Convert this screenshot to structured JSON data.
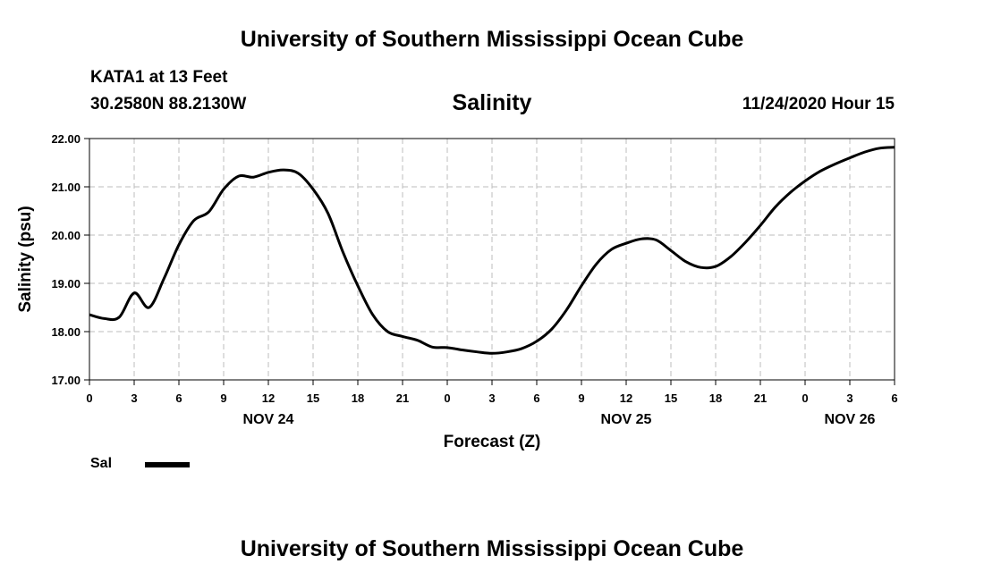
{
  "header": {
    "title": "University of Southern Mississippi Ocean Cube",
    "station": "KATA1 at 13 Feet",
    "coords": "30.2580N 88.2130W",
    "datestamp": "11/24/2020 Hour 15"
  },
  "footer": {
    "title": "University of Southern Mississippi Ocean Cube"
  },
  "chart_data": {
    "type": "line",
    "title": "Salinity",
    "xlabel": "Forecast (Z)",
    "ylabel": "Salinity (psu)",
    "xlim": [
      0,
      54
    ],
    "ylim": [
      17.0,
      22.0
    ],
    "y_ticks": [
      "17.00",
      "18.00",
      "19.00",
      "20.00",
      "21.00",
      "22.00"
    ],
    "x_ticks": [
      "0",
      "3",
      "6",
      "9",
      "12",
      "15",
      "18",
      "21",
      "0",
      "3",
      "6",
      "9",
      "12",
      "15",
      "18",
      "21",
      "0",
      "3",
      "6"
    ],
    "day_labels": [
      {
        "label": "NOV 24",
        "at_hour": 12
      },
      {
        "label": "NOV 25",
        "at_hour": 36
      },
      {
        "label": "NOV 26",
        "at_hour": 51
      }
    ],
    "grid": true,
    "legend": {
      "placement": "bottom-left",
      "entries": [
        {
          "name": "Sal",
          "color": "#000000"
        }
      ]
    },
    "series": [
      {
        "name": "Sal",
        "color": "#000000",
        "x": [
          0,
          1,
          2,
          3,
          4,
          5,
          6,
          7,
          8,
          9,
          10,
          11,
          12,
          13,
          14,
          15,
          16,
          17,
          18,
          19,
          20,
          21,
          22,
          23,
          24,
          25,
          26,
          27,
          28,
          29,
          30,
          31,
          32,
          33,
          34,
          35,
          36,
          37,
          38,
          39,
          40,
          41,
          42,
          43,
          44,
          45,
          46,
          47,
          48,
          49,
          50,
          51,
          52,
          53,
          54
        ],
        "values": [
          18.35,
          18.27,
          18.3,
          18.8,
          18.5,
          19.1,
          19.8,
          20.3,
          20.48,
          20.95,
          21.22,
          21.2,
          21.3,
          21.35,
          21.28,
          20.95,
          20.45,
          19.65,
          18.95,
          18.35,
          18.0,
          17.9,
          17.82,
          17.68,
          17.67,
          17.62,
          17.58,
          17.55,
          17.58,
          17.65,
          17.8,
          18.05,
          18.45,
          18.95,
          19.4,
          19.7,
          19.83,
          19.92,
          19.9,
          19.68,
          19.45,
          19.33,
          19.35,
          19.55,
          19.85,
          20.2,
          20.58,
          20.88,
          21.12,
          21.32,
          21.47,
          21.6,
          21.72,
          21.8,
          21.82
        ]
      }
    ]
  }
}
